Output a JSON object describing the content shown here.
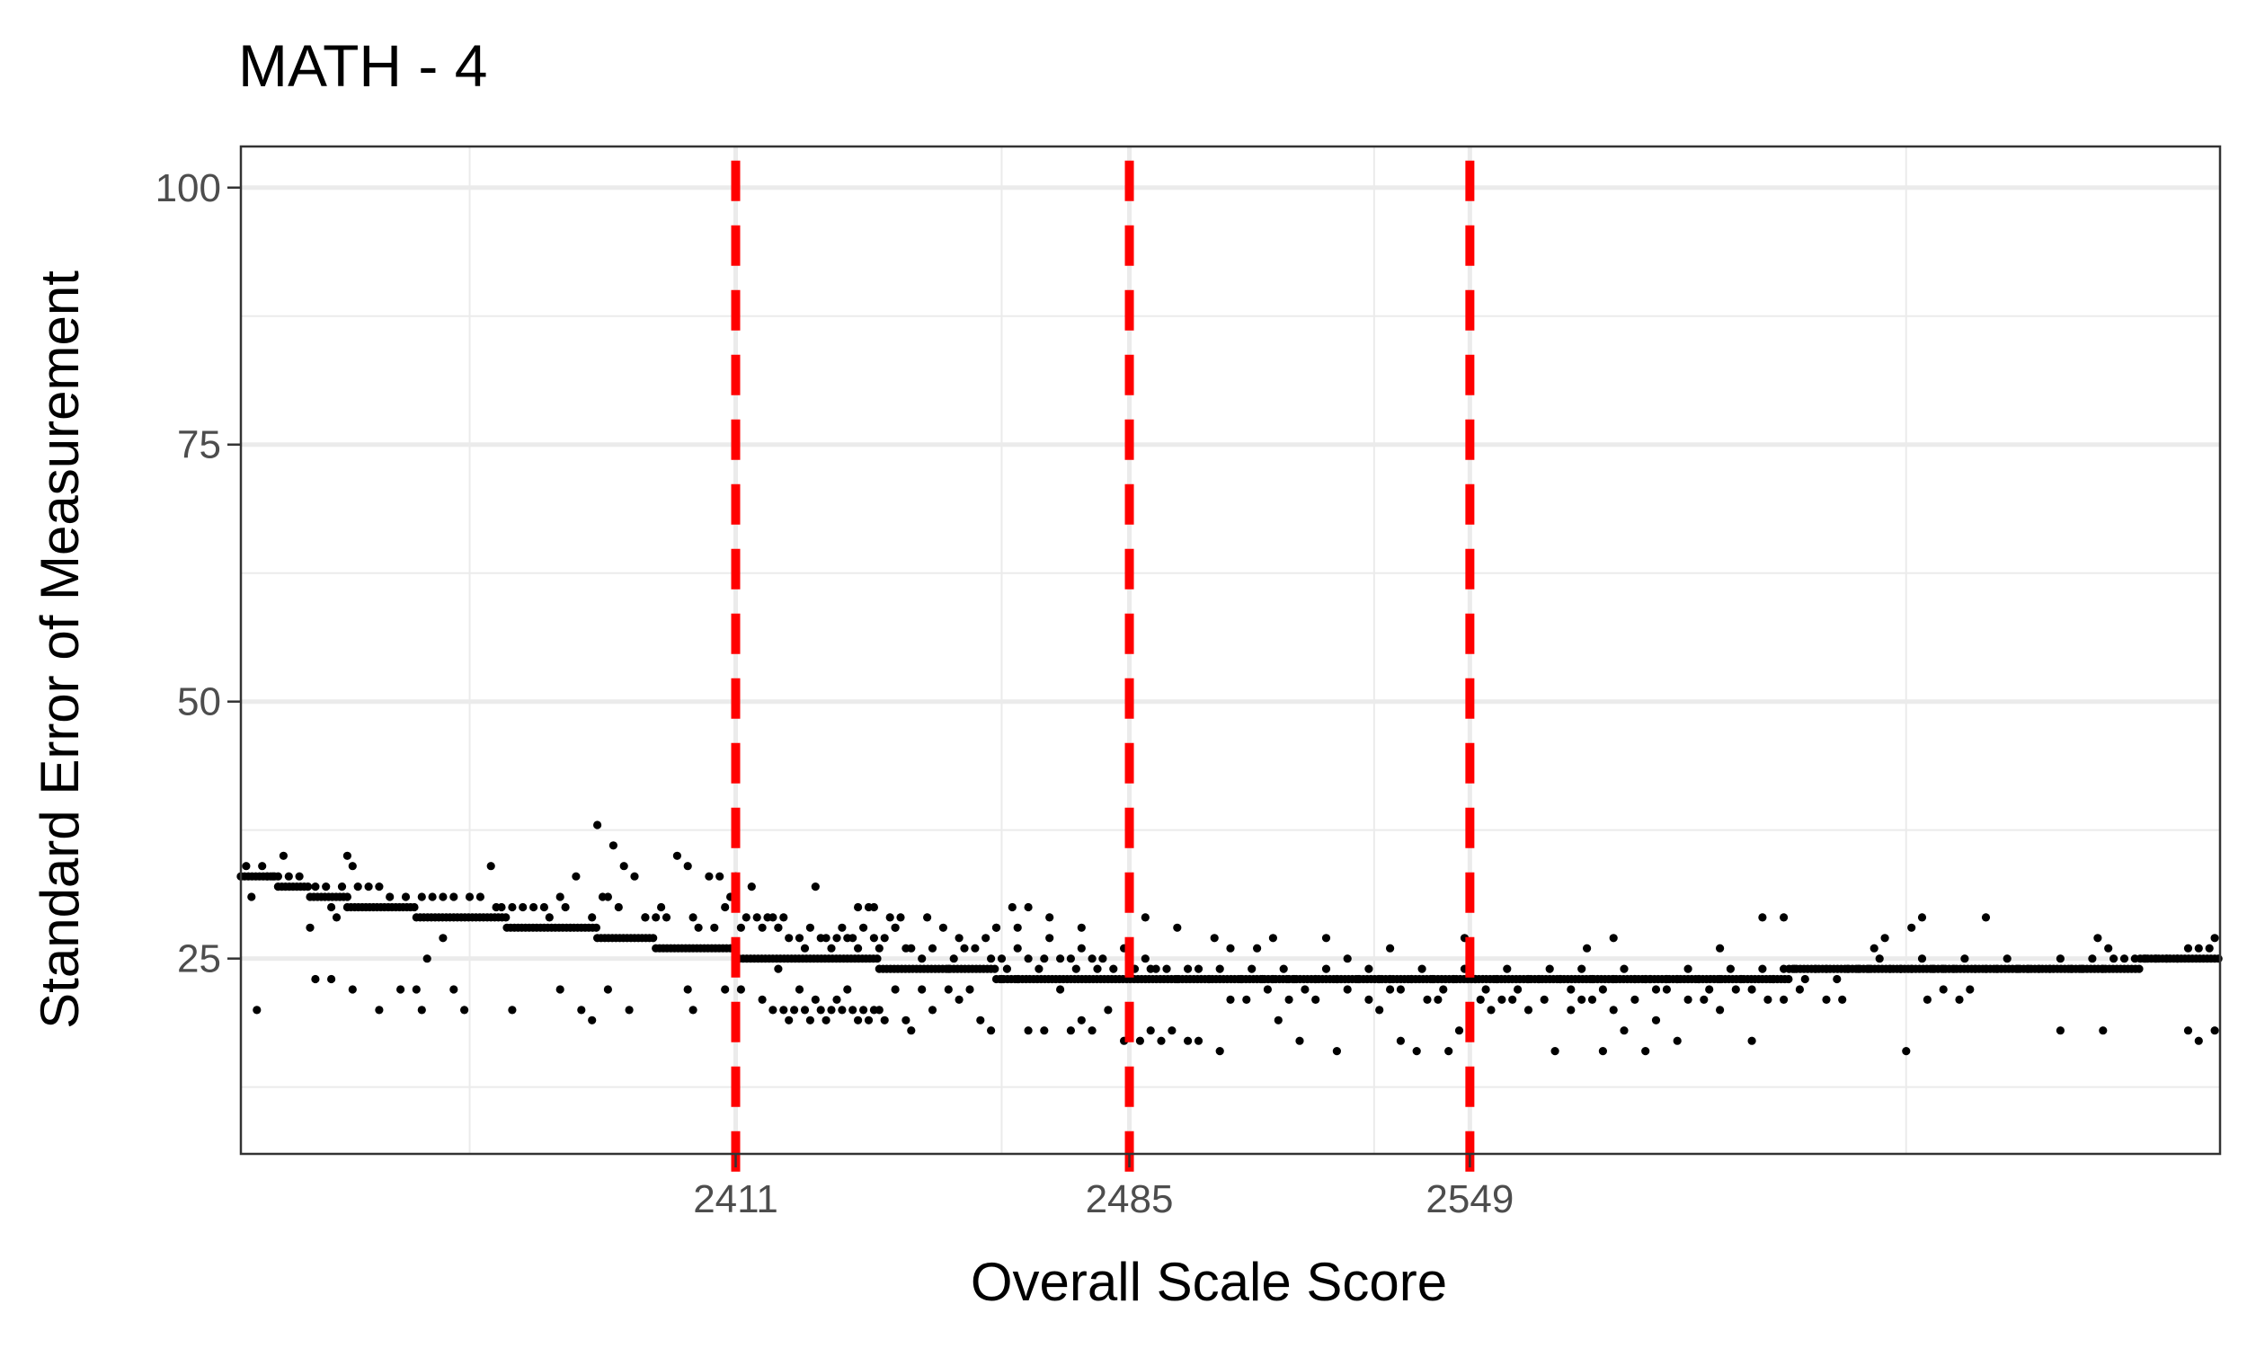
{
  "chart_data": {
    "type": "scatter",
    "title": "MATH - 4",
    "xlabel": "Overall Scale Score",
    "ylabel": "Standard Error of Measurement",
    "xlim": [
      2318,
      2690
    ],
    "ylim": [
      6,
      104
    ],
    "x_ticks": [
      2411,
      2485,
      2549
    ],
    "x_minor_grid": [
      2361,
      2461,
      2531,
      2631
    ],
    "y_ticks": [
      25,
      50,
      75,
      100
    ],
    "y_minor_grid": [
      12.5,
      37.5,
      62.5,
      87.5
    ],
    "grid": true,
    "reference_lines": [
      2411,
      2485,
      2549
    ],
    "colors": {
      "points": "#000000",
      "reference_line": "#ff0000",
      "grid": "#ebebeb",
      "panel_border": "#333333",
      "tick_label": "#4d4d4d"
    },
    "band": [
      {
        "x0": 2318,
        "x1": 2325,
        "y": 33
      },
      {
        "x0": 2325,
        "x1": 2331,
        "y": 32
      },
      {
        "x0": 2331,
        "x1": 2338,
        "y": 31
      },
      {
        "x0": 2338,
        "x1": 2351,
        "y": 30
      },
      {
        "x0": 2351,
        "x1": 2368,
        "y": 29
      },
      {
        "x0": 2368,
        "x1": 2385,
        "y": 28
      },
      {
        "x0": 2385,
        "x1": 2396,
        "y": 27
      },
      {
        "x0": 2396,
        "x1": 2411,
        "y": 26
      },
      {
        "x0": 2411,
        "x1": 2438,
        "y": 25
      },
      {
        "x0": 2438,
        "x1": 2460,
        "y": 24
      },
      {
        "x0": 2460,
        "x1": 2515,
        "y": 23
      },
      {
        "x0": 2515,
        "x1": 2566,
        "y": 23
      },
      {
        "x0": 2566,
        "x1": 2583,
        "y": 23
      },
      {
        "x0": 2583,
        "x1": 2609,
        "y": 23
      },
      {
        "x0": 2609,
        "x1": 2630,
        "y": 24
      },
      {
        "x0": 2630,
        "x1": 2675,
        "y": 24
      },
      {
        "x0": 2675,
        "x1": 2690,
        "y": 25
      }
    ],
    "points": [
      [
        2318,
        33
      ],
      [
        2319,
        34
      ],
      [
        2320,
        31
      ],
      [
        2322,
        34
      ],
      [
        2323,
        33
      ],
      [
        2324,
        33
      ],
      [
        2326,
        35
      ],
      [
        2327,
        33
      ],
      [
        2329,
        33
      ],
      [
        2332,
        32
      ],
      [
        2334,
        32
      ],
      [
        2335,
        30
      ],
      [
        2336,
        29
      ],
      [
        2337,
        32
      ],
      [
        2338,
        35
      ],
      [
        2339,
        34
      ],
      [
        2340,
        32
      ],
      [
        2342,
        32
      ],
      [
        2344,
        32
      ],
      [
        2346,
        31
      ],
      [
        2349,
        31
      ],
      [
        2352,
        31
      ],
      [
        2354,
        31
      ],
      [
        2356,
        31
      ],
      [
        2358,
        31
      ],
      [
        2361,
        31
      ],
      [
        2363,
        31
      ],
      [
        2365,
        34
      ],
      [
        2366,
        30
      ],
      [
        2367,
        30
      ],
      [
        2369,
        30
      ],
      [
        2371,
        30
      ],
      [
        2373,
        30
      ],
      [
        2375,
        30
      ],
      [
        2378,
        31
      ],
      [
        2379,
        30
      ],
      [
        2381,
        33
      ],
      [
        2384,
        29
      ],
      [
        2385,
        38
      ],
      [
        2386,
        31
      ],
      [
        2387,
        31
      ],
      [
        2388,
        36
      ],
      [
        2389,
        30
      ],
      [
        2390,
        34
      ],
      [
        2392,
        33
      ],
      [
        2394,
        29
      ],
      [
        2396,
        29
      ],
      [
        2398,
        29
      ],
      [
        2400,
        35
      ],
      [
        2402,
        34
      ],
      [
        2403,
        29
      ],
      [
        2404,
        28
      ],
      [
        2406,
        33
      ],
      [
        2407,
        28
      ],
      [
        2408,
        33
      ],
      [
        2409,
        30
      ],
      [
        2410,
        31
      ],
      [
        2411,
        33
      ],
      [
        2412,
        28
      ],
      [
        2413,
        29
      ],
      [
        2414,
        32
      ],
      [
        2415,
        29
      ],
      [
        2416,
        28
      ],
      [
        2417,
        29
      ],
      [
        2418,
        29
      ],
      [
        2419,
        28
      ],
      [
        2420,
        29
      ],
      [
        2421,
        27
      ],
      [
        2423,
        27
      ],
      [
        2424,
        26
      ],
      [
        2425,
        28
      ],
      [
        2426,
        32
      ],
      [
        2427,
        27
      ],
      [
        2428,
        27
      ],
      [
        2429,
        26
      ],
      [
        2430,
        27
      ],
      [
        2431,
        28
      ],
      [
        2432,
        27
      ],
      [
        2433,
        27
      ],
      [
        2434,
        30
      ],
      [
        2435,
        28
      ],
      [
        2436,
        30
      ],
      [
        2437,
        27
      ],
      [
        2438,
        26
      ],
      [
        2439,
        27
      ],
      [
        2440,
        29
      ],
      [
        2441,
        28
      ],
      [
        2442,
        29
      ],
      [
        2443,
        26
      ],
      [
        2444,
        26
      ],
      [
        2446,
        25
      ],
      [
        2448,
        26
      ],
      [
        2450,
        28
      ],
      [
        2451,
        24
      ],
      [
        2452,
        25
      ],
      [
        2453,
        27
      ],
      [
        2454,
        26
      ],
      [
        2456,
        26
      ],
      [
        2458,
        27
      ],
      [
        2459,
        25
      ],
      [
        2460,
        28
      ],
      [
        2461,
        25
      ],
      [
        2462,
        24
      ],
      [
        2463,
        30
      ],
      [
        2464,
        26
      ],
      [
        2466,
        25
      ],
      [
        2468,
        24
      ],
      [
        2469,
        25
      ],
      [
        2470,
        27
      ],
      [
        2472,
        25
      ],
      [
        2474,
        25
      ],
      [
        2475,
        24
      ],
      [
        2476,
        26
      ],
      [
        2478,
        25
      ],
      [
        2479,
        24
      ],
      [
        2480,
        25
      ],
      [
        2482,
        24
      ],
      [
        2484,
        26
      ],
      [
        2486,
        24
      ],
      [
        2488,
        25
      ],
      [
        2489,
        24
      ],
      [
        2490,
        24
      ],
      [
        2492,
        24
      ],
      [
        2494,
        23
      ],
      [
        2496,
        24
      ],
      [
        2498,
        24
      ],
      [
        2500,
        23
      ],
      [
        2502,
        24
      ],
      [
        2504,
        26
      ],
      [
        2506,
        23
      ],
      [
        2508,
        24
      ],
      [
        2510,
        23
      ],
      [
        2512,
        23
      ],
      [
        2514,
        24
      ],
      [
        2516,
        23
      ],
      [
        2518,
        22
      ],
      [
        2520,
        23
      ],
      [
        2522,
        24
      ],
      [
        2524,
        23
      ],
      [
        2526,
        25
      ],
      [
        2528,
        23
      ],
      [
        2530,
        24
      ],
      [
        2532,
        23
      ],
      [
        2534,
        23
      ],
      [
        2536,
        22
      ],
      [
        2538,
        23
      ],
      [
        2540,
        24
      ],
      [
        2542,
        23
      ],
      [
        2544,
        22
      ],
      [
        2546,
        23
      ],
      [
        2548,
        24
      ],
      [
        2550,
        23
      ],
      [
        2552,
        22
      ],
      [
        2554,
        23
      ],
      [
        2556,
        24
      ],
      [
        2558,
        22
      ],
      [
        2560,
        23
      ],
      [
        2562,
        23
      ],
      [
        2564,
        24
      ],
      [
        2566,
        23
      ],
      [
        2568,
        22
      ],
      [
        2570,
        24
      ],
      [
        2572,
        23
      ],
      [
        2574,
        22
      ],
      [
        2576,
        23
      ],
      [
        2578,
        24
      ],
      [
        2580,
        23
      ],
      [
        2582,
        23
      ],
      [
        2584,
        22
      ],
      [
        2586,
        23
      ],
      [
        2588,
        23
      ],
      [
        2590,
        24
      ],
      [
        2592,
        23
      ],
      [
        2594,
        22
      ],
      [
        2596,
        23
      ],
      [
        2598,
        24
      ],
      [
        2600,
        23
      ],
      [
        2602,
        22
      ],
      [
        2604,
        24
      ],
      [
        2606,
        23
      ],
      [
        2608,
        24
      ],
      [
        2610,
        24
      ],
      [
        2612,
        23
      ],
      [
        2614,
        24
      ],
      [
        2616,
        24
      ],
      [
        2618,
        23
      ],
      [
        2620,
        24
      ],
      [
        2622,
        24
      ],
      [
        2624,
        24
      ],
      [
        2626,
        25
      ],
      [
        2628,
        24
      ],
      [
        2630,
        24
      ],
      [
        2632,
        24
      ],
      [
        2634,
        25
      ],
      [
        2636,
        24
      ],
      [
        2638,
        24
      ],
      [
        2640,
        24
      ],
      [
        2642,
        25
      ],
      [
        2644,
        24
      ],
      [
        2646,
        24
      ],
      [
        2648,
        24
      ],
      [
        2650,
        25
      ],
      [
        2652,
        24
      ],
      [
        2654,
        24
      ],
      [
        2656,
        24
      ],
      [
        2658,
        24
      ],
      [
        2660,
        25
      ],
      [
        2662,
        24
      ],
      [
        2664,
        24
      ],
      [
        2666,
        25
      ],
      [
        2668,
        24
      ],
      [
        2670,
        25
      ],
      [
        2672,
        25
      ],
      [
        2674,
        25
      ],
      [
        2676,
        25
      ],
      [
        2678,
        25
      ],
      [
        2680,
        25
      ],
      [
        2682,
        25
      ],
      [
        2684,
        26
      ],
      [
        2686,
        26
      ],
      [
        2688,
        26
      ],
      [
        2689,
        27
      ],
      [
        2321,
        20
      ],
      [
        2331,
        28
      ],
      [
        2332,
        23
      ],
      [
        2335,
        23
      ],
      [
        2339,
        22
      ],
      [
        2344,
        20
      ],
      [
        2348,
        22
      ],
      [
        2351,
        22
      ],
      [
        2352,
        20
      ],
      [
        2353,
        25
      ],
      [
        2356,
        27
      ],
      [
        2358,
        22
      ],
      [
        2360,
        20
      ],
      [
        2369,
        20
      ],
      [
        2376,
        29
      ],
      [
        2378,
        22
      ],
      [
        2382,
        20
      ],
      [
        2384,
        19
      ],
      [
        2387,
        22
      ],
      [
        2391,
        20
      ],
      [
        2394,
        29
      ],
      [
        2397,
        30
      ],
      [
        2402,
        22
      ],
      [
        2403,
        20
      ],
      [
        2409,
        22
      ],
      [
        2412,
        22
      ],
      [
        2416,
        21
      ],
      [
        2418,
        20
      ],
      [
        2419,
        24
      ],
      [
        2420,
        20
      ],
      [
        2421,
        19
      ],
      [
        2422,
        20
      ],
      [
        2423,
        22
      ],
      [
        2424,
        20
      ],
      [
        2425,
        19
      ],
      [
        2426,
        21
      ],
      [
        2427,
        20
      ],
      [
        2428,
        19
      ],
      [
        2429,
        20
      ],
      [
        2430,
        21
      ],
      [
        2431,
        20
      ],
      [
        2432,
        22
      ],
      [
        2433,
        20
      ],
      [
        2434,
        19
      ],
      [
        2435,
        20
      ],
      [
        2436,
        19
      ],
      [
        2437,
        20
      ],
      [
        2438,
        20
      ],
      [
        2439,
        19
      ],
      [
        2441,
        22
      ],
      [
        2443,
        19
      ],
      [
        2444,
        18
      ],
      [
        2446,
        22
      ],
      [
        2448,
        20
      ],
      [
        2451,
        22
      ],
      [
        2453,
        21
      ],
      [
        2455,
        22
      ],
      [
        2457,
        19
      ],
      [
        2459,
        18
      ],
      [
        2461,
        23
      ],
      [
        2464,
        23
      ],
      [
        2466,
        18
      ],
      [
        2469,
        18
      ],
      [
        2472,
        22
      ],
      [
        2474,
        18
      ],
      [
        2476,
        19
      ],
      [
        2478,
        18
      ],
      [
        2481,
        20
      ],
      [
        2484,
        17
      ],
      [
        2487,
        17
      ],
      [
        2489,
        18
      ],
      [
        2491,
        17
      ],
      [
        2493,
        18
      ],
      [
        2496,
        17
      ],
      [
        2498,
        17
      ],
      [
        2502,
        16
      ],
      [
        2504,
        21
      ],
      [
        2507,
        21
      ],
      [
        2511,
        22
      ],
      [
        2513,
        19
      ],
      [
        2515,
        21
      ],
      [
        2517,
        17
      ],
      [
        2520,
        21
      ],
      [
        2524,
        16
      ],
      [
        2526,
        22
      ],
      [
        2530,
        21
      ],
      [
        2532,
        20
      ],
      [
        2534,
        22
      ],
      [
        2536,
        17
      ],
      [
        2539,
        16
      ],
      [
        2541,
        21
      ],
      [
        2543,
        21
      ],
      [
        2545,
        16
      ],
      [
        2547,
        18
      ],
      [
        2549,
        19
      ],
      [
        2551,
        21
      ],
      [
        2553,
        20
      ],
      [
        2555,
        21
      ],
      [
        2557,
        21
      ],
      [
        2560,
        20
      ],
      [
        2563,
        21
      ],
      [
        2565,
        16
      ],
      [
        2568,
        20
      ],
      [
        2570,
        21
      ],
      [
        2572,
        21
      ],
      [
        2574,
        16
      ],
      [
        2576,
        20
      ],
      [
        2578,
        18
      ],
      [
        2580,
        21
      ],
      [
        2582,
        16
      ],
      [
        2584,
        19
      ],
      [
        2586,
        22
      ],
      [
        2588,
        17
      ],
      [
        2590,
        21
      ],
      [
        2593,
        21
      ],
      [
        2596,
        20
      ],
      [
        2599,
        22
      ],
      [
        2602,
        17
      ],
      [
        2605,
        21
      ],
      [
        2608,
        21
      ],
      [
        2611,
        22
      ],
      [
        2616,
        21
      ],
      [
        2619,
        21
      ],
      [
        2631,
        16
      ],
      [
        2635,
        21
      ],
      [
        2638,
        22
      ],
      [
        2641,
        21
      ],
      [
        2643,
        22
      ],
      [
        2660,
        18
      ],
      [
        2668,
        18
      ],
      [
        2684,
        18
      ],
      [
        2686,
        17
      ],
      [
        2689,
        18
      ],
      [
        2419,
        28
      ],
      [
        2434,
        26
      ],
      [
        2437,
        30
      ],
      [
        2441,
        28
      ],
      [
        2447,
        29
      ],
      [
        2460,
        28
      ],
      [
        2464,
        28
      ],
      [
        2466,
        30
      ],
      [
        2470,
        29
      ],
      [
        2476,
        28
      ],
      [
        2488,
        29
      ],
      [
        2494,
        28
      ],
      [
        2501,
        27
      ],
      [
        2509,
        26
      ],
      [
        2512,
        27
      ],
      [
        2522,
        27
      ],
      [
        2534,
        26
      ],
      [
        2548,
        27
      ],
      [
        2571,
        26
      ],
      [
        2576,
        27
      ],
      [
        2596,
        26
      ],
      [
        2604,
        29
      ],
      [
        2608,
        29
      ],
      [
        2625,
        26
      ],
      [
        2627,
        27
      ],
      [
        2632,
        28
      ],
      [
        2634,
        29
      ],
      [
        2646,
        29
      ],
      [
        2667,
        27
      ],
      [
        2669,
        26
      ]
    ]
  }
}
